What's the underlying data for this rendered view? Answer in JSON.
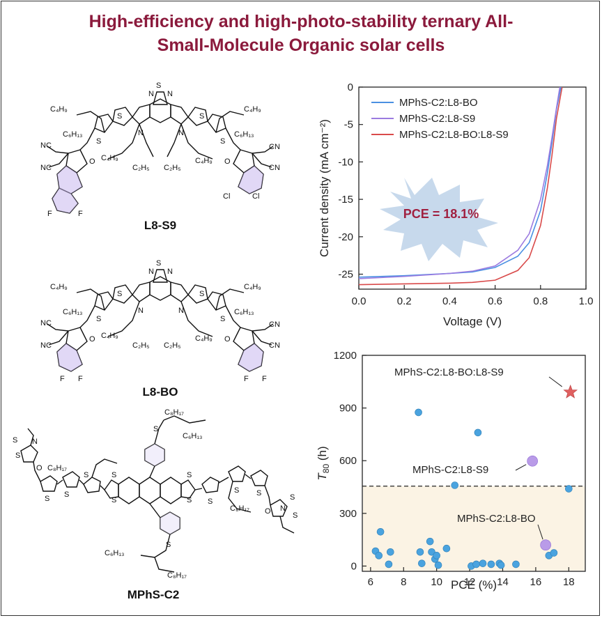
{
  "title": {
    "line1": "High-efficiency and high-photo-stability ternary All-",
    "line2": "Small-Molecule Organic solar cells"
  },
  "molecules": {
    "l8s9": "L8-S9",
    "l8bo": "L8-BO",
    "mphs": "MPhS-C2"
  },
  "jv_chart": {
    "type": "line",
    "xlabel": "Voltage (V)",
    "ylabel": "Current density (mA cm⁻²)",
    "xlim": [
      0.0,
      1.0
    ],
    "ylim": [
      -27,
      0
    ],
    "xticks": [
      "0.0",
      "0.2",
      "0.4",
      "0.6",
      "0.8",
      "1.0"
    ],
    "yticks": [
      "0",
      "-5",
      "-10",
      "-15",
      "-20",
      "-25"
    ],
    "legend_position": "top-right",
    "annotation": "PCE = 18.1%",
    "series": [
      {
        "name": "MPhS-C2:L8-BO",
        "color": "#4a90e2",
        "x": [
          0,
          0.2,
          0.4,
          0.5,
          0.6,
          0.7,
          0.75,
          0.8,
          0.83,
          0.85,
          0.87,
          0.89
        ],
        "y": [
          -25.4,
          -25.2,
          -24.9,
          -24.7,
          -24.1,
          -22.6,
          -20.8,
          -16.5,
          -11.5,
          -7.5,
          -3.0,
          0
        ]
      },
      {
        "name": "MPhS-C2:L8-S9",
        "color": "#9b7be0",
        "x": [
          0,
          0.2,
          0.4,
          0.5,
          0.6,
          0.7,
          0.75,
          0.8,
          0.83,
          0.85,
          0.87,
          0.885
        ],
        "y": [
          -25.6,
          -25.3,
          -24.9,
          -24.6,
          -23.9,
          -21.8,
          -19.6,
          -15.0,
          -10.5,
          -6.8,
          -2.8,
          0
        ]
      },
      {
        "name": "MPhS-C2:L8-BO:L8-S9",
        "color": "#d94a4a",
        "x": [
          0,
          0.2,
          0.4,
          0.5,
          0.6,
          0.7,
          0.75,
          0.8,
          0.83,
          0.85,
          0.87,
          0.895
        ],
        "y": [
          -26.4,
          -26.3,
          -26.2,
          -26.1,
          -25.8,
          -24.5,
          -22.8,
          -18.5,
          -13.5,
          -9.2,
          -4.2,
          0
        ]
      }
    ]
  },
  "t80_chart": {
    "type": "scatter",
    "xlabel": "PCE (%)",
    "ylabel_main": "T",
    "ylabel_sub": "80",
    "ylabel_unit": " (h)",
    "xlim": [
      5.5,
      19
    ],
    "ylim": [
      -30,
      1200
    ],
    "xticks": [
      "6",
      "8",
      "10",
      "12",
      "14",
      "16",
      "18"
    ],
    "yticks": [
      "0",
      "300",
      "600",
      "900",
      "1200"
    ],
    "threshold": 455,
    "labels": {
      "ternary": "MPhS-C2:L8-BO:L8-S9",
      "s9": "MPhS-C2:L8-S9",
      "bo": "MPhS-C2:L8-BO"
    },
    "literature": {
      "color": "#4aa3df",
      "points": [
        [
          6.3,
          85
        ],
        [
          6.5,
          60
        ],
        [
          6.6,
          195
        ],
        [
          7.1,
          10
        ],
        [
          7.2,
          80
        ],
        [
          8.9,
          875
        ],
        [
          9.0,
          80
        ],
        [
          9.1,
          15
        ],
        [
          9.6,
          140
        ],
        [
          9.7,
          80
        ],
        [
          9.9,
          40
        ],
        [
          10.0,
          60
        ],
        [
          10.1,
          5
        ],
        [
          10.6,
          100
        ],
        [
          11.1,
          460
        ],
        [
          12.1,
          0
        ],
        [
          12.4,
          10
        ],
        [
          12.5,
          760
        ],
        [
          12.8,
          15
        ],
        [
          13.3,
          10
        ],
        [
          13.8,
          15
        ],
        [
          13.9,
          5
        ],
        [
          14.8,
          10
        ],
        [
          16.8,
          60
        ],
        [
          17.1,
          75
        ],
        [
          18.0,
          440
        ]
      ]
    },
    "binary_bo": {
      "color": "#b99be8",
      "x": 16.6,
      "y": 120
    },
    "binary_s9": {
      "color": "#b99be8",
      "x": 15.8,
      "y": 598
    },
    "ternary": {
      "color": "#e06060",
      "x": 18.1,
      "y": 990
    }
  }
}
